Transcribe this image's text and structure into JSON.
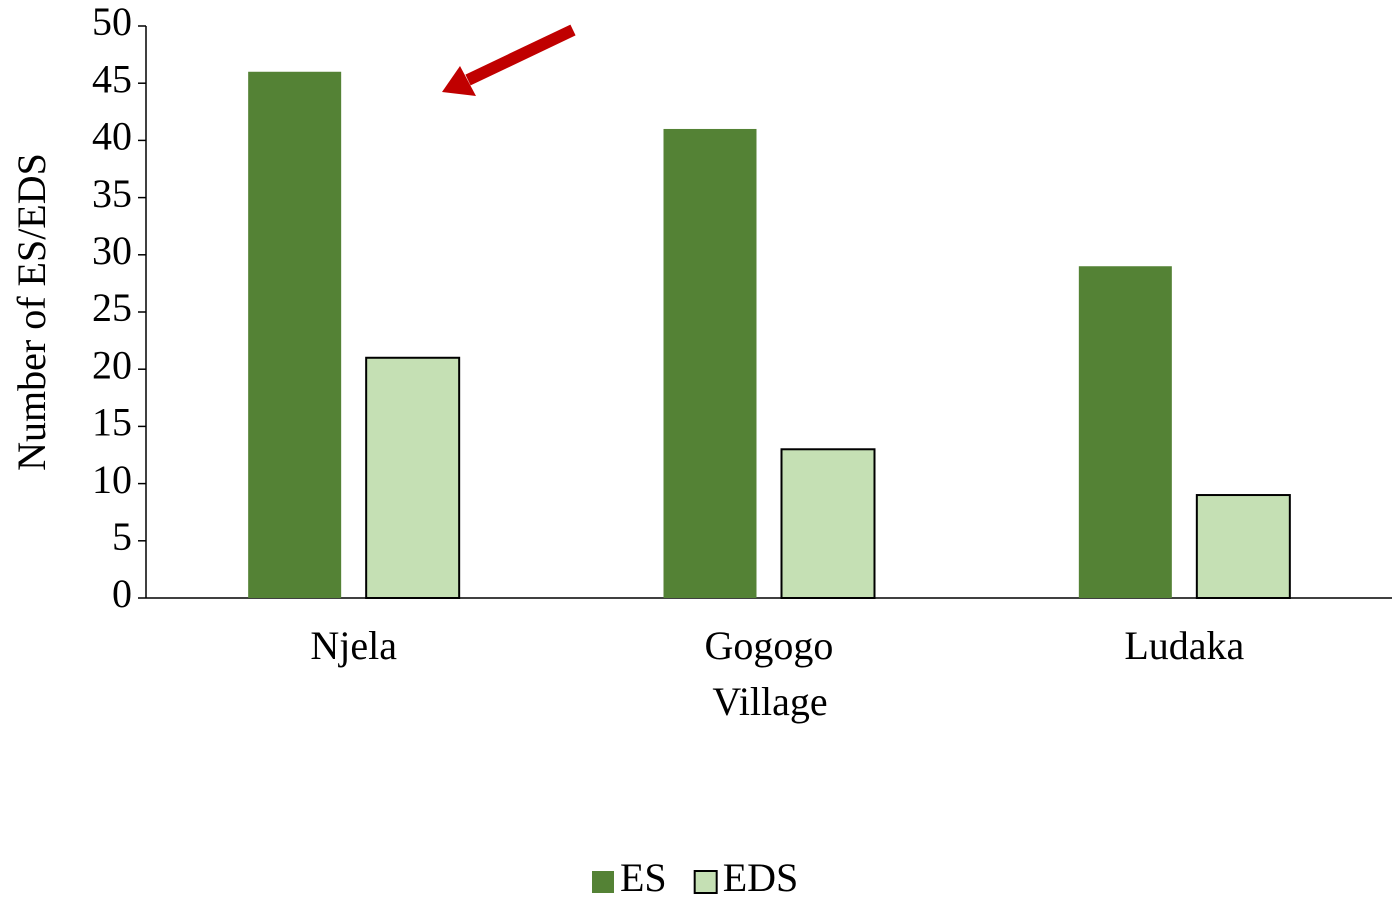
{
  "chart_data": {
    "type": "bar",
    "categories": [
      "Njela",
      "Gogogo",
      "Ludaka"
    ],
    "series": [
      {
        "name": "ES",
        "color": "#548235",
        "values": [
          46,
          41,
          29
        ]
      },
      {
        "name": "EDS",
        "color": "#c5e0b4",
        "values": [
          21,
          13,
          9
        ]
      }
    ],
    "x_label": "Village",
    "y_label": "Number of ES/EDS",
    "ylim": [
      0,
      50
    ],
    "yticks": [
      0,
      5,
      10,
      15,
      20,
      25,
      30,
      35,
      40,
      45,
      50
    ],
    "grid": false,
    "legend": "bottom"
  }
}
